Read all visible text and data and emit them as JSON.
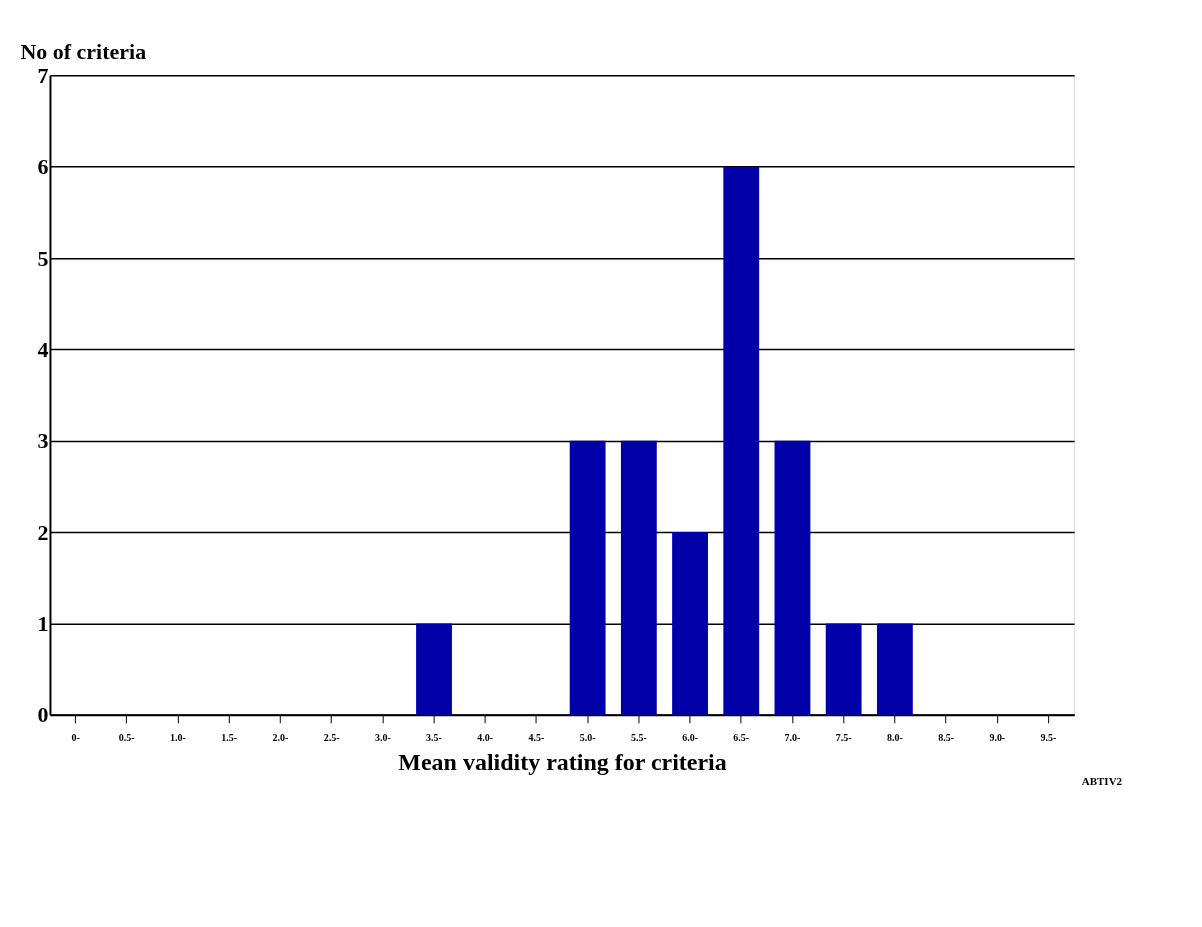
{
  "chart_data": {
    "type": "bar",
    "categories": [
      "0-",
      "0.5-",
      "1.0-",
      "1.5-",
      "2.0-",
      "2.5-",
      "3.0-",
      "3.5-",
      "4.0-",
      "4.5-",
      "5.0-",
      "5.5-",
      "6.0-",
      "6.5-",
      "7.0-",
      "7.5-",
      "8.0-",
      "8.5-",
      "9.0-",
      "9.5-"
    ],
    "values": [
      0,
      0,
      0,
      0,
      0,
      0,
      0,
      1,
      0,
      0,
      3,
      3,
      2,
      6,
      3,
      1,
      1,
      0,
      0,
      0
    ],
    "color": "#0000a8",
    "xlabel": "Mean validity rating for criteria",
    "ylabel": "No of criteria",
    "ylim": [
      0,
      7
    ],
    "yticks": [
      0,
      1,
      2,
      3,
      4,
      5,
      6,
      7
    ],
    "grid": "y",
    "annotations": [
      "ABTIV2"
    ]
  }
}
